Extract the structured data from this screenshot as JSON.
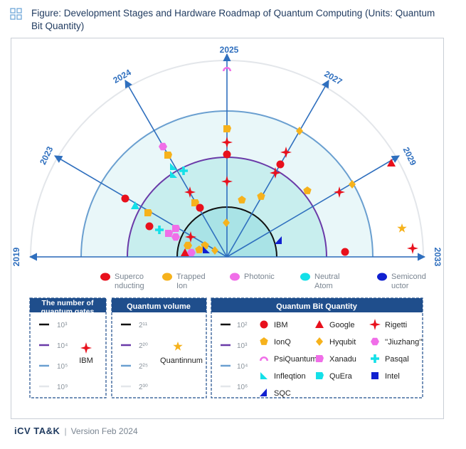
{
  "title": "Figure: Development Stages and Hardware Roadmap of Quantum Computing (Units: Quantum Bit Quantity)",
  "chart_data": {
    "type": "radial-roadmap",
    "years": [
      "2019",
      "2023",
      "2024",
      "2025",
      "2027",
      "2029",
      "2033"
    ],
    "categories": [
      {
        "label": "Superco nducting",
        "color": "#e8101c"
      },
      {
        "label": "Trapped Ion",
        "color": "#f6b21c"
      },
      {
        "label": "Photonic",
        "color": "#f06ee8"
      },
      {
        "label": "Neutral Atom",
        "color": "#14e0e8"
      },
      {
        "label": "Semicond uctor",
        "color": "#1020d0"
      }
    ],
    "rings": {
      "gates": [
        "10³",
        "10⁴",
        "10⁵",
        "10⁹"
      ],
      "volume": [
        "2¹¹",
        "2²⁰",
        "2²⁵",
        "2³⁰"
      ],
      "qubits": [
        "10²",
        "10³",
        "10⁴",
        "10⁶"
      ]
    },
    "panels": {
      "gates_title": "The number of quantum gates",
      "gates_company": "IBM",
      "volume_title": "Quantum volume",
      "volume_company": "Quantinnum",
      "qubits_title": "Quantum Bit Quantity"
    },
    "companies": [
      {
        "name": "IBM",
        "marker": "circle",
        "color": "#e8101c"
      },
      {
        "name": "Google",
        "marker": "triangle",
        "color": "#e8101c"
      },
      {
        "name": "Rigetti",
        "marker": "star4",
        "color": "#e8101c"
      },
      {
        "name": "IonQ",
        "marker": "pentagon",
        "color": "#f6b21c"
      },
      {
        "name": "Hyqubit",
        "marker": "diamond",
        "color": "#f6b21c"
      },
      {
        "name": "''Jiuzhang''",
        "marker": "hexagon",
        "color": "#f06ee8"
      },
      {
        "name": "PsiQuantum",
        "marker": "arc",
        "color": "#f06ee8"
      },
      {
        "name": "Xanadu",
        "marker": "house",
        "color": "#f06ee8"
      },
      {
        "name": "Pasqal",
        "marker": "cross",
        "color": "#14e0e8"
      },
      {
        "name": "Infleqtion",
        "marker": "rtri",
        "color": "#14e0e8"
      },
      {
        "name": "QuEra",
        "marker": "house",
        "color": "#14e0e8"
      },
      {
        "name": "Intel",
        "marker": "cup",
        "color": "#1020d0"
      },
      {
        "name": "SQC",
        "marker": "flag",
        "color": "#1020d0"
      }
    ]
  },
  "footer": {
    "brand": "iCV TA&K",
    "version": "Version Feb 2024"
  }
}
